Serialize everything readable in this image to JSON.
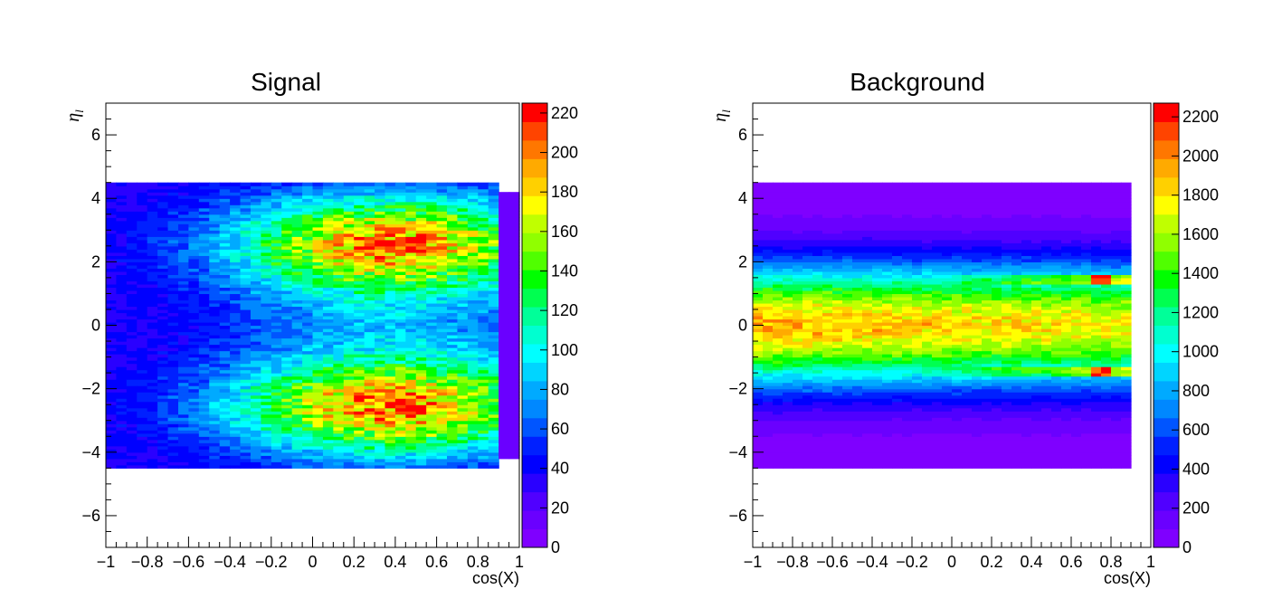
{
  "chart_data": [
    {
      "type": "heatmap",
      "title": "Signal",
      "xlabel": "cos(X)",
      "ylabel": "η_l",
      "xlim": [
        -1,
        1
      ],
      "ylim": [
        -7,
        7
      ],
      "x_ticks": [
        "−1",
        "−0.8",
        "−0.6",
        "−0.4",
        "−0.2",
        "0",
        "0.2",
        "0.4",
        "0.6",
        "0.8",
        "1"
      ],
      "y_ticks": [
        "−6",
        "−4",
        "−2",
        "0",
        "2",
        "4",
        "6"
      ],
      "z_range": [
        0,
        225
      ],
      "z_ticks": [
        "0",
        "20",
        "40",
        "60",
        "80",
        "100",
        "120",
        "140",
        "160",
        "180",
        "200",
        "220"
      ],
      "bins": {
        "x_bins": 40,
        "y_bins": 90,
        "y_range": [
          -4.5,
          4.5
        ]
      },
      "peaks": [
        {
          "x": 0.47,
          "y": 2.7,
          "z": 225
        },
        {
          "x": 0.47,
          "y": -2.6,
          "z": 225
        },
        {
          "x": 0.3,
          "y": 2.6,
          "z": 210
        }
      ],
      "colorscale": [
        "#7f00ff",
        "#6a00ff",
        "#5000ff",
        "#2a00ff",
        "#0000ff",
        "#0020ff",
        "#0055ff",
        "#0088ff",
        "#00aaff",
        "#00d5ff",
        "#00ffff",
        "#00ffd0",
        "#00ff99",
        "#00ff50",
        "#00ff00",
        "#50ff00",
        "#90ff00",
        "#c0ff00",
        "#ffff00",
        "#ffd000",
        "#ffaa00",
        "#ff7700",
        "#ff4400",
        "#ff0000"
      ]
    },
    {
      "type": "heatmap",
      "title": "Background",
      "xlabel": "cos(X)",
      "ylabel": "η_l",
      "xlim": [
        -1,
        1
      ],
      "ylim": [
        -7,
        7
      ],
      "x_ticks": [
        "−1",
        "−0.8",
        "−0.6",
        "−0.4",
        "−0.2",
        "0",
        "0.2",
        "0.4",
        "0.6",
        "0.8",
        "1"
      ],
      "y_ticks": [
        "−6",
        "−4",
        "−2",
        "0",
        "2",
        "4",
        "6"
      ],
      "z_range": [
        0,
        2270
      ],
      "z_ticks": [
        "0",
        "200",
        "400",
        "600",
        "800",
        "1000",
        "1200",
        "1400",
        "1600",
        "1800",
        "2000",
        "2200"
      ],
      "bins": {
        "x_bins": 40,
        "y_bins": 90,
        "y_range": [
          -4.5,
          4.5
        ]
      },
      "peaks": [
        {
          "x": 0.75,
          "y": 1.45,
          "z": 2270
        },
        {
          "x": 0.75,
          "y": -1.45,
          "z": 2270
        },
        {
          "x": -0.85,
          "y": 0.0,
          "z": 1800
        }
      ],
      "colorscale": [
        "#7f00ff",
        "#6a00ff",
        "#5000ff",
        "#2a00ff",
        "#0000ff",
        "#0020ff",
        "#0055ff",
        "#0088ff",
        "#00aaff",
        "#00d5ff",
        "#00ffff",
        "#00ffd0",
        "#00ff99",
        "#00ff50",
        "#00ff00",
        "#50ff00",
        "#90ff00",
        "#c0ff00",
        "#ffff00",
        "#ffd000",
        "#ffaa00",
        "#ff7700",
        "#ff4400",
        "#ff0000"
      ]
    }
  ]
}
